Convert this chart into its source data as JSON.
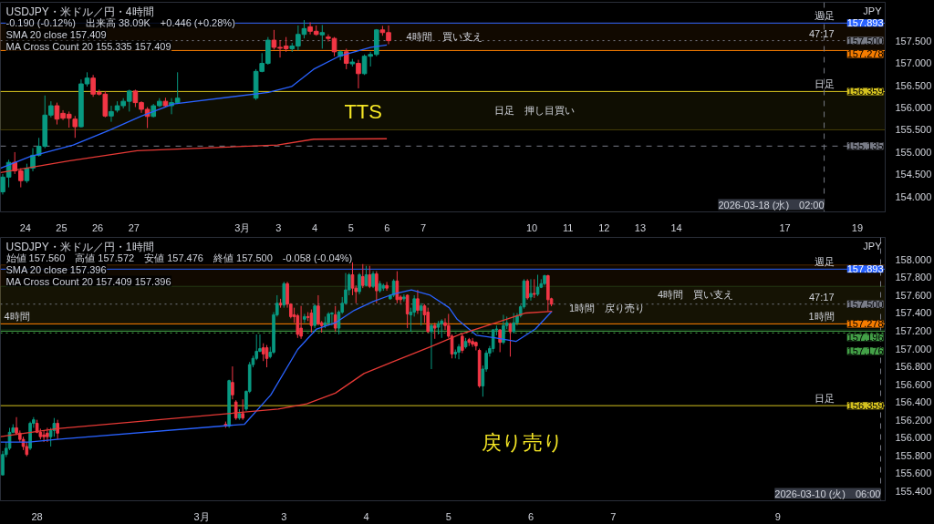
{
  "chart_data": [
    {
      "type": "candlestick",
      "title": "USDJPY・米ドル／円・4時間",
      "subtitle": "-0.190 (-0.12%)　出来高 38.09K　+0.446 (+0.28%)",
      "ylabel": "JPY",
      "annotations": [
        "SMA 20 close 157.409",
        "MA Cross Count 20 155.335 157.409",
        "TTS",
        "週足",
        "47:17",
        "日足"
      ],
      "xlim": [
        "2026-02-23T07:30",
        "2026-03-19T18:30"
      ],
      "ylim": [
        153.66,
        158.36
      ],
      "xticks": [
        {
          "value": "2026-02-24",
          "label": "24"
        },
        {
          "value": "2026-02-25",
          "label": "25"
        },
        {
          "value": "2026-02-26",
          "label": "26"
        },
        {
          "value": "2026-02-27",
          "label": "27"
        },
        {
          "value": "2026-03-02",
          "label": "3月"
        },
        {
          "value": "2026-03-03",
          "label": "3"
        },
        {
          "value": "2026-03-04",
          "label": "4"
        },
        {
          "value": "2026-03-05",
          "label": "5"
        },
        {
          "value": "2026-03-06",
          "label": "6"
        },
        {
          "value": "2026-03-07",
          "label": "7"
        },
        {
          "value": "2026-03-10",
          "label": "10"
        },
        {
          "value": "2026-03-11",
          "label": "11"
        },
        {
          "value": "2026-03-12",
          "label": "12"
        },
        {
          "value": "2026-03-13",
          "label": "13"
        },
        {
          "value": "2026-03-14",
          "label": "14"
        },
        {
          "value": "2026-03-17",
          "label": "17"
        },
        {
          "value": "2026-03-19",
          "label": "19"
        }
      ],
      "yticks": [
        {
          "value": 154.0,
          "label": "154.000"
        },
        {
          "value": 154.5,
          "label": "154.500"
        },
        {
          "value": 155.0,
          "label": "155.000"
        },
        {
          "value": 155.5,
          "label": "155.500"
        },
        {
          "value": 156.0,
          "label": "156.000"
        },
        {
          "value": 156.5,
          "label": "156.500"
        },
        {
          "value": 157.0,
          "label": "157.000"
        },
        {
          "value": 157.5,
          "label": "157.500"
        }
      ],
      "x": [
        "2026-02-23T09:00",
        "2026-02-23T13:00",
        "2026-02-23T17:00",
        "2026-02-23T21:00",
        "2026-02-24T01:00",
        "2026-02-24T05:00",
        "2026-02-24T09:00",
        "2026-02-24T13:00",
        "2026-02-24T17:00",
        "2026-02-24T21:00",
        "2026-02-25T01:00",
        "2026-02-25T05:00",
        "2026-02-25T09:00",
        "2026-02-25T13:00",
        "2026-02-25T17:00",
        "2026-02-25T21:00",
        "2026-02-26T01:00",
        "2026-02-26T05:00",
        "2026-02-26T09:00",
        "2026-02-26T13:00",
        "2026-02-26T17:00",
        "2026-02-26T21:00",
        "2026-02-27T01:00",
        "2026-02-27T05:00",
        "2026-02-27T09:00",
        "2026-02-27T13:00",
        "2026-02-27T17:00",
        "2026-02-27T21:00",
        "2026-02-28T01:00",
        "2026-02-28T05:00",
        "2026-03-02T09:00",
        "2026-03-02T13:00",
        "2026-03-02T17:00",
        "2026-03-02T21:00",
        "2026-03-03T01:00",
        "2026-03-03T05:00",
        "2026-03-03T09:00",
        "2026-03-03T13:00",
        "2026-03-03T17:00",
        "2026-03-03T21:00",
        "2026-03-04T01:00",
        "2026-03-04T05:00",
        "2026-03-04T09:00",
        "2026-03-04T13:00",
        "2026-03-04T17:00",
        "2026-03-04T21:00",
        "2026-03-05T01:00",
        "2026-03-05T05:00",
        "2026-03-05T09:00",
        "2026-03-05T13:00",
        "2026-03-05T17:00",
        "2026-03-05T21:00",
        "2026-03-06T01:00"
      ],
      "ohlc": [
        [
          154.11,
          154.51,
          154.05,
          154.44
        ],
        [
          154.44,
          154.83,
          154.21,
          154.77
        ],
        [
          154.77,
          155.0,
          154.51,
          154.58
        ],
        [
          154.58,
          154.64,
          154.21,
          154.36
        ],
        [
          154.36,
          154.74,
          154.31,
          154.64
        ],
        [
          154.64,
          155.09,
          154.57,
          154.93
        ],
        [
          154.93,
          155.32,
          154.9,
          155.13
        ],
        [
          155.13,
          156.27,
          155.09,
          155.83
        ],
        [
          155.83,
          156.14,
          155.78,
          156.04
        ],
        [
          156.04,
          156.11,
          155.62,
          155.74
        ],
        [
          155.87,
          155.94,
          155.72,
          155.76
        ],
        [
          155.85,
          155.91,
          155.55,
          155.76
        ],
        [
          155.74,
          155.81,
          155.32,
          155.57
        ],
        [
          155.57,
          156.63,
          155.55,
          156.53
        ],
        [
          156.53,
          156.79,
          156.47,
          156.66
        ],
        [
          156.66,
          156.73,
          156.24,
          156.3
        ],
        [
          156.34,
          156.4,
          156.27,
          156.3
        ],
        [
          156.3,
          156.37,
          155.78,
          155.81
        ],
        [
          155.81,
          156.04,
          155.68,
          155.91
        ],
        [
          155.94,
          156.14,
          155.89,
          156.04
        ],
        [
          156.04,
          156.21,
          155.98,
          156.14
        ],
        [
          156.14,
          156.4,
          155.91,
          156.37
        ],
        [
          156.37,
          156.4,
          156.01,
          156.11
        ],
        [
          156.11,
          156.14,
          155.88,
          155.96
        ],
        [
          155.96,
          156.01,
          155.54,
          155.8
        ],
        [
          155.8,
          156.08,
          155.78,
          156.04
        ],
        [
          156.04,
          156.21,
          156.01,
          156.14
        ],
        [
          156.14,
          156.22,
          156.0,
          156.04
        ],
        [
          156.04,
          156.21,
          155.85,
          156.11
        ],
        [
          156.11,
          156.79,
          156.08,
          156.21
        ],
        [
          156.21,
          156.86,
          156.17,
          156.81
        ],
        [
          156.81,
          157.22,
          156.79,
          156.99
        ],
        [
          156.99,
          157.58,
          156.96,
          157.51
        ],
        [
          157.51,
          157.74,
          157.3,
          157.35
        ],
        [
          157.35,
          157.51,
          157.12,
          157.33
        ],
        [
          157.38,
          157.58,
          157.25,
          157.32
        ],
        [
          157.32,
          157.45,
          157.25,
          157.38
        ],
        [
          157.38,
          157.84,
          157.28,
          157.64
        ],
        [
          157.64,
          157.96,
          157.55,
          157.77
        ],
        [
          157.81,
          157.91,
          157.64,
          157.71
        ],
        [
          157.71,
          157.84,
          157.61,
          157.64
        ],
        [
          157.63,
          157.85,
          157.32,
          157.68
        ],
        [
          157.58,
          157.64,
          157.48,
          157.55
        ],
        [
          157.55,
          157.58,
          157.15,
          157.25
        ],
        [
          157.15,
          157.28,
          157.06,
          157.25
        ],
        [
          157.25,
          157.32,
          156.86,
          156.99
        ],
        [
          156.98,
          157.09,
          156.92,
          157.02
        ],
        [
          156.99,
          157.07,
          156.43,
          156.76
        ],
        [
          156.76,
          157.19,
          156.73,
          157.15
        ],
        [
          157.15,
          157.25,
          156.92,
          157.19
        ],
        [
          157.19,
          157.76,
          157.15,
          157.74
        ],
        [
          157.74,
          157.83,
          157.61,
          157.68
        ],
        [
          157.68,
          157.84,
          157.42,
          157.5
        ]
      ],
      "colors": [
        "#089981",
        "#089981",
        "#f23645",
        "#f23645",
        "#089981",
        "#089981",
        "#089981",
        "#089981",
        "#089981",
        "#f23645",
        "#f23645",
        "#f23645",
        "#f23645",
        "#089981",
        "#089981",
        "#f23645",
        "#f23645",
        "#f23645",
        "#089981",
        "#089981",
        "#089981",
        "#089981",
        "#f23645",
        "#f23645",
        "#f23645",
        "#089981",
        "#089981",
        "#f23645",
        "#089981",
        "#089981",
        "#089981",
        "#089981",
        "#089981",
        "#f23645",
        "#f23645",
        "#f23645",
        "#089981",
        "#089981",
        "#089981",
        "#f23645",
        "#f23645",
        "#089981",
        "#f23645",
        "#f23645",
        "#089981",
        "#f23645",
        "#089981",
        "#f23645",
        "#089981",
        "#089981",
        "#089981",
        "#f23645",
        "#f23645"
      ],
      "series": [
        {
          "type": "line",
          "color": "#2962ff",
          "x": [
            "2026-02-23T07:30",
            "2026-02-24T03:00",
            "2026-02-25T07:50",
            "2026-02-26T07:50",
            "2026-02-27T05:00",
            "2026-02-28T02:10",
            "2026-03-02T17:20",
            "2026-03-03T08:40",
            "2026-03-03T23:20",
            "2026-03-04T16:10",
            "2026-03-05T13:20",
            "2026-03-05T23:50"
          ],
          "values": [
            154.64,
            154.9,
            155.16,
            155.49,
            155.81,
            156.08,
            156.34,
            156.47,
            156.86,
            157.15,
            157.35,
            157.4
          ]
        },
        {
          "type": "line",
          "color": "#e53935",
          "x": [
            "2026-02-23T07:30",
            "2026-02-25T04:40",
            "2026-02-27T02:10",
            "2026-03-02T23:20",
            "2026-03-03T23:20",
            "2026-03-05T23:50"
          ],
          "values": [
            154.54,
            154.8,
            155.03,
            155.16,
            155.29,
            155.3
          ]
        }
      ],
      "ref_lines": [
        {
          "axis": "y",
          "value": 157.893,
          "label": "157.893",
          "color": "#2962ff",
          "line_style": "solid"
        },
        {
          "axis": "y",
          "value": 157.5,
          "label": "157.500",
          "color": "#787b86",
          "line_style": "dotted"
        },
        {
          "axis": "y",
          "value": 157.278,
          "label": "157.278",
          "color": "#f57c00",
          "line_style": "solid"
        },
        {
          "axis": "y",
          "value": 156.359,
          "label": "156.359",
          "color": "#d4c11f",
          "line_style": "solid"
        },
        {
          "axis": "y",
          "value": 155.135,
          "label": "155.135",
          "color": "#787b86",
          "line_style": "dashed"
        },
        {
          "axis": "x",
          "value": "2026-03-18T02:00",
          "label": "2026-03-18 (水)　02:00",
          "color": "#787b86",
          "line_style": "dashed"
        }
      ],
      "bands": [
        {
          "axis": "y",
          "from": 157.278,
          "to": 157.893,
          "label": "4時間　買い支え",
          "color": "#f57c00"
        },
        {
          "axis": "y",
          "from": 155.5,
          "to": 156.359,
          "label": "日足　押し目買い",
          "color": "#d4c11f"
        }
      ]
    },
    {
      "type": "candlestick",
      "title": "USDJPY・米ドル／円・1時間",
      "subtitle": "始値 157.560　高値 157.572　安値 157.476　終値 157.500　-0.058 (-0.04%)",
      "ylabel": "JPY",
      "annotations": [
        "SMA 20 close 157.396",
        "MA Cross Count 20 157.409 157.396",
        "戻り売り",
        "4時間",
        "週足",
        "47:17",
        "1時間",
        "日足"
      ],
      "xlim": [
        "2026-02-27T13:20",
        "2026-03-10T07:20"
      ],
      "ylim": [
        155.29,
        158.25
      ],
      "xticks": [
        {
          "value": "2026-02-28",
          "label": "28"
        },
        {
          "value": "2026-03-02",
          "label": "3月"
        },
        {
          "value": "2026-03-03",
          "label": "3"
        },
        {
          "value": "2026-03-04",
          "label": "4"
        },
        {
          "value": "2026-03-05",
          "label": "5"
        },
        {
          "value": "2026-03-06",
          "label": "6"
        },
        {
          "value": "2026-03-07",
          "label": "7"
        },
        {
          "value": "2026-03-09",
          "label": "9"
        }
      ],
      "yticks": [
        {
          "value": 155.4,
          "label": "155.400"
        },
        {
          "value": 155.6,
          "label": "155.600"
        },
        {
          "value": 155.8,
          "label": "155.800"
        },
        {
          "value": 156.0,
          "label": "156.000"
        },
        {
          "value": 156.2,
          "label": "156.200"
        },
        {
          "value": 156.4,
          "label": "156.400"
        },
        {
          "value": 156.6,
          "label": "156.600"
        },
        {
          "value": 156.8,
          "label": "156.800"
        },
        {
          "value": 157.0,
          "label": "157.000"
        },
        {
          "value": 157.2,
          "label": "157.200"
        },
        {
          "value": 157.4,
          "label": "157.400"
        },
        {
          "value": 157.6,
          "label": "157.600"
        },
        {
          "value": 157.8,
          "label": "157.800"
        },
        {
          "value": 158.0,
          "label": "158.000"
        }
      ],
      "x": [
        "2026-02-27T14:00",
        "2026-02-27T15:00",
        "2026-02-27T16:00",
        "2026-02-27T17:00",
        "2026-02-27T18:00",
        "2026-02-27T19:00",
        "2026-02-27T20:00",
        "2026-02-27T21:00",
        "2026-02-27T22:00",
        "2026-02-27T23:00",
        "2026-02-28T00:00",
        "2026-02-28T01:00",
        "2026-02-28T02:00",
        "2026-02-28T03:00",
        "2026-02-28T04:00",
        "2026-02-28T05:00",
        "2026-02-28T06:00",
        "2026-03-02T07:00",
        "2026-03-02T08:00",
        "2026-03-02T09:00",
        "2026-03-02T10:00",
        "2026-03-02T11:00",
        "2026-03-02T12:00",
        "2026-03-02T13:00",
        "2026-03-02T14:00",
        "2026-03-02T15:00",
        "2026-03-02T16:00",
        "2026-03-02T17:00",
        "2026-03-02T18:00",
        "2026-03-02T19:00",
        "2026-03-02T20:00",
        "2026-03-02T21:00",
        "2026-03-02T22:00",
        "2026-03-02T23:00",
        "2026-03-03T00:00",
        "2026-03-03T01:00",
        "2026-03-03T02:00",
        "2026-03-03T03:00",
        "2026-03-03T04:00",
        "2026-03-03T05:00",
        "2026-03-03T06:00",
        "2026-03-03T07:00",
        "2026-03-03T08:00",
        "2026-03-03T09:00",
        "2026-03-03T10:00",
        "2026-03-03T11:00",
        "2026-03-03T12:00",
        "2026-03-03T13:00",
        "2026-03-03T14:00",
        "2026-03-03T15:00",
        "2026-03-03T16:00",
        "2026-03-03T17:00",
        "2026-03-03T18:00",
        "2026-03-03T19:00",
        "2026-03-03T20:00",
        "2026-03-03T21:00",
        "2026-03-03T22:00",
        "2026-03-03T23:00",
        "2026-03-04T00:00",
        "2026-03-04T01:00",
        "2026-03-04T02:00",
        "2026-03-04T03:00",
        "2026-03-04T04:00",
        "2026-03-04T05:00",
        "2026-03-04T06:00",
        "2026-03-04T07:00",
        "2026-03-04T08:00",
        "2026-03-04T09:00",
        "2026-03-04T10:00",
        "2026-03-04T11:00",
        "2026-03-04T12:00",
        "2026-03-04T13:00",
        "2026-03-04T14:00",
        "2026-03-04T15:00",
        "2026-03-04T16:00",
        "2026-03-04T17:00",
        "2026-03-04T18:00",
        "2026-03-04T19:00",
        "2026-03-04T20:00",
        "2026-03-04T21:00",
        "2026-03-04T22:00",
        "2026-03-04T23:00",
        "2026-03-05T00:00",
        "2026-03-05T01:00",
        "2026-03-05T02:00",
        "2026-03-05T03:00",
        "2026-03-05T04:00",
        "2026-03-05T05:00",
        "2026-03-05T06:00",
        "2026-03-05T07:00",
        "2026-03-05T08:00",
        "2026-03-05T09:00",
        "2026-03-05T10:00",
        "2026-03-05T11:00",
        "2026-03-05T12:00",
        "2026-03-05T13:00",
        "2026-03-05T14:00",
        "2026-03-05T15:00",
        "2026-03-05T16:00",
        "2026-03-05T17:00",
        "2026-03-05T18:00",
        "2026-03-05T19:00",
        "2026-03-05T20:00",
        "2026-03-05T21:00",
        "2026-03-05T22:00",
        "2026-03-05T23:00",
        "2026-03-06T00:00",
        "2026-03-06T01:00",
        "2026-03-06T02:00",
        "2026-03-06T03:00",
        "2026-03-06T04:00",
        "2026-03-06T05:00",
        "2026-03-06T06:00"
      ],
      "ohlc": [
        [
          155.58,
          155.85,
          155.58,
          155.81
        ],
        [
          155.81,
          155.95,
          155.78,
          155.88
        ],
        [
          155.88,
          156.11,
          155.86,
          156.06
        ],
        [
          156.06,
          156.15,
          156.05,
          156.11
        ],
        [
          156.11,
          156.23,
          156.03,
          156.05
        ],
        [
          156.05,
          156.08,
          155.95,
          155.98
        ],
        [
          155.98,
          156.01,
          155.86,
          155.9
        ],
        [
          155.9,
          155.95,
          155.79,
          155.81
        ],
        [
          155.88,
          156.18,
          155.86,
          156.16
        ],
        [
          156.16,
          156.23,
          156.11,
          156.2
        ],
        [
          156.16,
          156.2,
          156.05,
          156.06
        ],
        [
          156.06,
          156.1,
          155.98,
          156.01
        ],
        [
          156.03,
          156.08,
          155.95,
          156.01
        ],
        [
          156.05,
          156.11,
          155.95,
          156.01
        ],
        [
          156.01,
          156.11,
          155.9,
          156.08
        ],
        [
          156.08,
          156.22,
          156.01,
          156.16
        ],
        [
          156.16,
          156.2,
          155.98,
          156.05
        ],
        [
          156.15,
          156.18,
          156.11,
          156.13
        ],
        [
          156.13,
          156.65,
          156.11,
          156.64
        ],
        [
          156.62,
          156.8,
          156.43,
          156.48
        ],
        [
          156.4,
          156.42,
          156.2,
          156.22
        ],
        [
          156.22,
          156.32,
          156.2,
          156.27
        ],
        [
          156.27,
          156.43,
          156.2,
          156.22
        ],
        [
          156.32,
          156.53,
          156.3,
          156.52
        ],
        [
          156.52,
          156.85,
          156.5,
          156.82
        ],
        [
          156.82,
          156.92,
          156.79,
          156.89
        ],
        [
          156.89,
          157.16,
          156.87,
          156.97
        ],
        [
          156.97,
          157.16,
          156.96,
          157.0
        ],
        [
          157.01,
          157.06,
          156.86,
          156.94
        ],
        [
          157.01,
          157.04,
          156.79,
          156.89
        ],
        [
          156.91,
          157.02,
          156.89,
          156.96
        ],
        [
          156.96,
          157.41,
          156.94,
          157.38
        ],
        [
          157.38,
          157.6,
          157.36,
          157.51
        ],
        [
          157.51,
          157.56,
          157.46,
          157.49
        ],
        [
          157.49,
          157.75,
          157.46,
          157.73
        ],
        [
          157.73,
          157.75,
          157.46,
          157.5
        ],
        [
          157.5,
          157.51,
          157.34,
          157.36
        ],
        [
          157.38,
          157.46,
          157.29,
          157.36
        ],
        [
          157.37,
          157.39,
          157.12,
          157.16
        ],
        [
          157.23,
          157.48,
          157.11,
          157.14
        ],
        [
          157.33,
          157.39,
          157.29,
          157.36
        ],
        [
          157.36,
          157.41,
          157.31,
          157.35
        ],
        [
          157.4,
          157.44,
          157.18,
          157.26
        ],
        [
          157.26,
          157.5,
          157.23,
          157.48
        ],
        [
          157.48,
          157.6,
          157.26,
          157.28
        ],
        [
          157.29,
          157.31,
          157.18,
          157.26
        ],
        [
          157.26,
          157.36,
          157.23,
          157.29
        ],
        [
          157.29,
          157.41,
          157.26,
          157.39
        ],
        [
          157.39,
          157.41,
          157.26,
          157.4
        ],
        [
          157.38,
          157.48,
          157.19,
          157.23
        ],
        [
          157.23,
          157.43,
          157.16,
          157.41
        ],
        [
          157.41,
          157.58,
          157.39,
          157.51
        ],
        [
          157.51,
          157.85,
          157.5,
          157.66
        ],
        [
          157.66,
          157.85,
          157.6,
          157.83
        ],
        [
          157.83,
          157.97,
          157.6,
          157.68
        ],
        [
          157.68,
          157.71,
          157.51,
          157.64
        ],
        [
          157.64,
          157.85,
          157.61,
          157.83
        ],
        [
          157.81,
          157.95,
          157.68,
          157.71
        ],
        [
          157.71,
          157.93,
          157.7,
          157.83
        ],
        [
          157.83,
          157.93,
          157.68,
          157.7
        ],
        [
          157.7,
          157.87,
          157.68,
          157.84
        ],
        [
          157.84,
          157.87,
          157.51,
          157.65
        ],
        [
          157.65,
          157.76,
          157.63,
          157.73
        ],
        [
          157.68,
          157.73,
          157.65,
          157.71
        ],
        [
          157.71,
          157.75,
          157.65,
          157.68
        ],
        [
          157.56,
          157.61,
          157.55,
          157.6
        ],
        [
          157.6,
          157.78,
          157.58,
          157.76
        ],
        [
          157.76,
          157.87,
          157.51,
          157.55
        ],
        [
          157.58,
          157.6,
          157.51,
          157.55
        ],
        [
          157.56,
          157.61,
          157.53,
          157.58
        ],
        [
          157.6,
          157.61,
          157.23,
          157.39
        ],
        [
          157.38,
          157.46,
          157.19,
          157.41
        ],
        [
          157.41,
          157.6,
          157.36,
          157.56
        ],
        [
          157.56,
          157.66,
          157.39,
          157.43
        ],
        [
          157.43,
          157.51,
          157.26,
          157.48
        ],
        [
          157.48,
          157.5,
          157.29,
          157.38
        ],
        [
          157.41,
          157.46,
          157.18,
          157.19
        ],
        [
          157.19,
          157.28,
          156.77,
          157.26
        ],
        [
          157.26,
          157.29,
          157.11,
          157.23
        ],
        [
          157.24,
          157.31,
          157.16,
          157.28
        ],
        [
          157.28,
          157.33,
          157.12,
          157.31
        ],
        [
          157.29,
          157.34,
          157.21,
          157.26
        ],
        [
          157.26,
          157.39,
          157.12,
          157.14
        ],
        [
          157.14,
          157.16,
          156.89,
          156.94
        ],
        [
          156.94,
          156.99,
          156.89,
          156.96
        ],
        [
          156.96,
          157.05,
          156.88,
          157.02
        ],
        [
          157.14,
          157.17,
          156.95,
          156.98
        ],
        [
          157.02,
          157.12,
          157.0,
          157.08
        ],
        [
          157.1,
          157.12,
          157.03,
          157.07
        ],
        [
          157.08,
          157.12,
          157.02,
          157.05
        ],
        [
          157.07,
          157.08,
          156.98,
          157.03
        ],
        [
          156.98,
          157.0,
          156.56,
          156.58
        ],
        [
          156.58,
          156.81,
          156.46,
          156.77
        ],
        [
          156.77,
          156.98,
          156.74,
          156.95
        ],
        [
          156.95,
          157.03,
          156.91,
          157.0
        ],
        [
          157.0,
          157.22,
          156.96,
          157.21
        ],
        [
          157.21,
          157.26,
          157.15,
          157.22
        ],
        [
          157.21,
          157.22,
          156.96,
          157.07
        ],
        [
          157.07,
          157.38,
          157.05,
          157.26
        ],
        [
          157.26,
          157.36,
          157.22,
          157.29
        ],
        [
          157.28,
          157.29,
          156.91,
          157.19
        ],
        [
          157.19,
          157.4,
          157.17,
          157.29
        ],
        [
          157.29,
          157.4,
          157.26,
          157.37
        ],
        [
          157.37,
          157.49,
          157.35,
          157.47
        ],
        [
          157.47,
          157.78,
          157.45,
          157.76
        ],
        [
          157.76,
          157.78,
          157.55,
          157.57
        ],
        [
          157.58,
          157.78,
          157.54,
          157.62
        ],
        [
          157.62,
          157.78,
          157.57,
          157.61
        ],
        [
          157.61,
          157.83,
          157.59,
          157.69
        ],
        [
          157.69,
          157.78,
          157.68,
          157.73
        ],
        [
          157.73,
          157.83,
          157.71,
          157.82
        ],
        [
          157.82,
          157.83,
          157.42,
          157.55
        ],
        [
          157.56,
          157.572,
          157.476,
          157.5
        ]
      ],
      "colors": [
        "#089981",
        "#089981",
        "#089981",
        "#089981",
        "#f23645",
        "#f23645",
        "#f23645",
        "#f23645",
        "#089981",
        "#089981",
        "#f23645",
        "#f23645",
        "#f23645",
        "#f23645",
        "#089981",
        "#089981",
        "#f23645",
        "#f23645",
        "#089981",
        "#f23645",
        "#f23645",
        "#089981",
        "#f23645",
        "#089981",
        "#089981",
        "#089981",
        "#089981",
        "#089981",
        "#f23645",
        "#f23645",
        "#089981",
        "#089981",
        "#089981",
        "#f23645",
        "#089981",
        "#f23645",
        "#f23645",
        "#f23645",
        "#f23645",
        "#f23645",
        "#089981",
        "#f23645",
        "#f23645",
        "#089981",
        "#f23645",
        "#f23645",
        "#089981",
        "#089981",
        "#089981",
        "#f23645",
        "#089981",
        "#089981",
        "#089981",
        "#089981",
        "#f23645",
        "#f23645",
        "#089981",
        "#f23645",
        "#089981",
        "#f23645",
        "#089981",
        "#f23645",
        "#089981",
        "#089981",
        "#f23645",
        "#089981",
        "#089981",
        "#f23645",
        "#f23645",
        "#089981",
        "#f23645",
        "#089981",
        "#089981",
        "#f23645",
        "#089981",
        "#f23645",
        "#f23645",
        "#089981",
        "#f23645",
        "#089981",
        "#089981",
        "#f23645",
        "#f23645",
        "#f23645",
        "#089981",
        "#089981",
        "#f23645",
        "#089981",
        "#f23645",
        "#f23645",
        "#f23645",
        "#f23645",
        "#089981",
        "#089981",
        "#089981",
        "#089981",
        "#089981",
        "#f23645",
        "#089981",
        "#089981",
        "#f23645",
        "#089981",
        "#089981",
        "#089981",
        "#089981",
        "#f23645",
        "#089981",
        "#f23645",
        "#089981",
        "#089981",
        "#089981",
        "#f23645",
        "#f23645"
      ],
      "series": [
        {
          "type": "line",
          "color": "#2962ff",
          "x": [
            "2026-02-27T13:20",
            "2026-02-27T21:40",
            "2026-02-28T05:50",
            "2026-03-02T12:30",
            "2026-03-02T20:10",
            "2026-03-03T04:00",
            "2026-03-03T09:30",
            "2026-03-03T15:00",
            "2026-03-03T20:30",
            "2026-03-04T02:00",
            "2026-03-04T07:40",
            "2026-03-04T13:10",
            "2026-03-04T18:40",
            "2026-03-05T00:10",
            "2026-03-05T02:30",
            "2026-03-05T08:10",
            "2026-03-05T13:50",
            "2026-03-05T19:40",
            "2026-03-06T01:20",
            "2026-03-06T06:10"
          ],
          "values": [
            155.95,
            155.95,
            155.98,
            156.15,
            156.48,
            156.99,
            157.22,
            157.29,
            157.43,
            157.53,
            157.61,
            157.66,
            157.6,
            157.46,
            157.33,
            157.15,
            157.12,
            157.08,
            157.22,
            157.42
          ]
        },
        {
          "type": "line",
          "color": "#e53935",
          "x": [
            "2026-02-27T13:20",
            "2026-02-28T05:50",
            "2026-03-02T22:20",
            "2026-03-03T06:40",
            "2026-03-03T15:00",
            "2026-03-03T23:20",
            "2026-03-04T07:40",
            "2026-03-04T18:40",
            "2026-03-05T03:20",
            "2026-03-05T13:50",
            "2026-03-05T22:30",
            "2026-03-06T06:10"
          ],
          "values": [
            156.01,
            156.1,
            156.32,
            156.38,
            156.5,
            156.72,
            156.85,
            157.02,
            157.16,
            157.29,
            157.4,
            157.42
          ]
        }
      ],
      "ref_lines": [
        {
          "axis": "y",
          "value": 157.893,
          "label": "157.893",
          "color": "#2962ff",
          "line_style": "solid"
        },
        {
          "axis": "y",
          "value": 157.5,
          "label": "157.500",
          "color": "#787b86",
          "line_style": "dotted"
        },
        {
          "axis": "y",
          "value": 157.278,
          "label": "157.278",
          "color": "#f57c00",
          "line_style": "solid"
        },
        {
          "axis": "y",
          "value": 157.196,
          "label": "157.196",
          "color": "#43a047",
          "line_style": "solid"
        },
        {
          "axis": "y",
          "value": 157.176,
          "label": "157.176",
          "color": "#43a047",
          "line_style": "dotted"
        },
        {
          "axis": "y",
          "value": 156.359,
          "label": "156.359",
          "color": "#d4c11f",
          "line_style": "solid"
        },
        {
          "axis": "x",
          "value": "2026-03-10T06:00",
          "label": "2026-03-10 (火)　06:00",
          "color": "#787b86",
          "line_style": "dashed"
        }
      ],
      "bands": [
        {
          "axis": "y",
          "from": 157.21,
          "to": 157.7,
          "label": "1時間　戻り売り",
          "color": "#43a047"
        },
        {
          "axis": "y",
          "from": 157.278,
          "to": 157.94,
          "label": "4時間　買い支え",
          "color": "#f57c00"
        }
      ]
    }
  ]
}
